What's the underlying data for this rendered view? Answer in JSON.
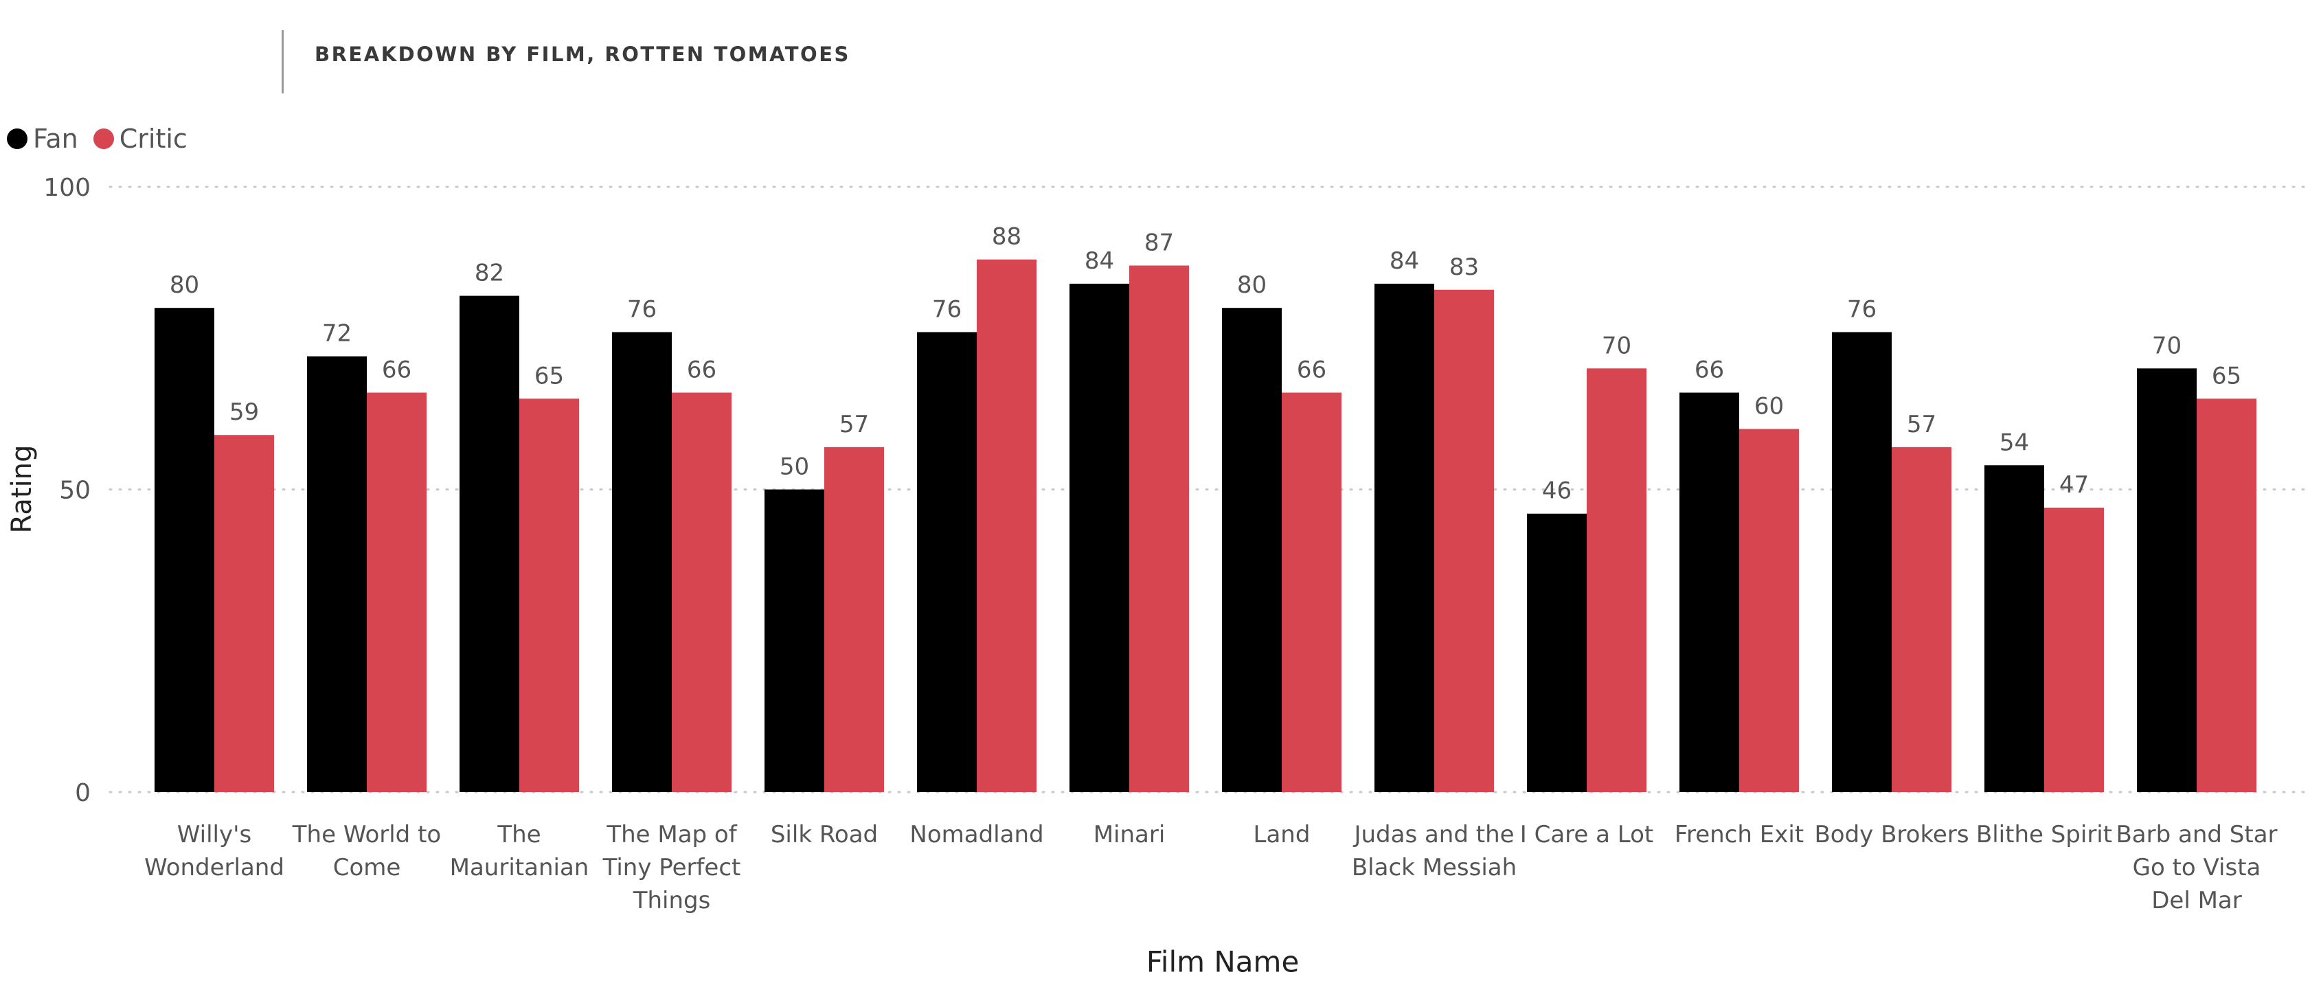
{
  "chart_data": {
    "type": "bar",
    "title": "BREAKDOWN BY FILM, ROTTEN TOMATOES",
    "xlabel": "Film Name",
    "ylabel": "Rating",
    "ylim": [
      0,
      100
    ],
    "yticks": [
      0,
      50,
      100
    ],
    "grid": true,
    "legend_position": "top-left",
    "categories": [
      "Willy's Wonderland",
      "The World to Come",
      "The Mauritanian",
      "The Map of Tiny Perfect Things",
      "Silk Road",
      "Nomadland",
      "Minari",
      "Land",
      "Judas and the Black Messiah",
      "I Care a Lot",
      "French Exit",
      "Body Brokers",
      "Blithe Spirit",
      "Barb and Star Go to Vista Del Mar"
    ],
    "series": [
      {
        "name": "Fan",
        "color": "#000000",
        "values": [
          80,
          72,
          82,
          76,
          50,
          76,
          84,
          80,
          84,
          46,
          66,
          76,
          54,
          70
        ]
      },
      {
        "name": "Critic",
        "color": "#d64550",
        "values": [
          59,
          66,
          65,
          66,
          57,
          88,
          87,
          66,
          83,
          70,
          60,
          57,
          47,
          65
        ]
      }
    ]
  }
}
